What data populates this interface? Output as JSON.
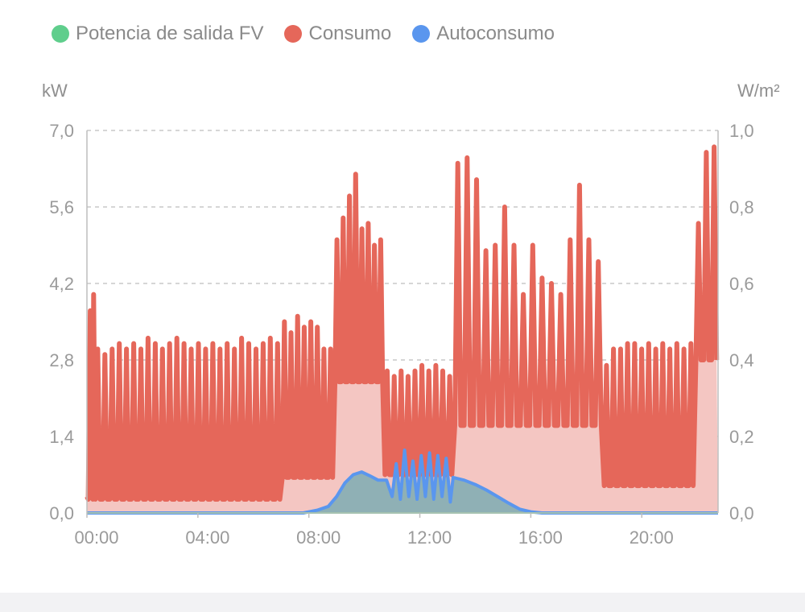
{
  "legend": {
    "pv": "Potencia de salida FV",
    "consumption": "Consumo",
    "self_consumption": "Autoconsumo"
  },
  "colors": {
    "pv": "#5fce8c",
    "consumption": "#e5675a",
    "consumption_fill": "#f4c6c2",
    "self_consumption": "#5a96ee",
    "self_consumption_fill": "#8fb0b5",
    "grid": "#c8c8c8",
    "axis": "#bdbdbd"
  },
  "chart_data": {
    "type": "line",
    "x_unit": "hours",
    "y_left_unit": "kW",
    "y_right_unit": "W/m²",
    "y_left_ticks": [
      "0,0",
      "1,4",
      "2,8",
      "4,2",
      "5,6",
      "7,0"
    ],
    "y_right_ticks": [
      "0,0",
      "0,2",
      "0,4",
      "0,6",
      "0,8",
      "1,0"
    ],
    "x_ticks": [
      "00:00",
      "04:00",
      "08:00",
      "12:00",
      "16:00",
      "20:00"
    ],
    "ylim_left": [
      0,
      7.0
    ],
    "ylim_right": [
      0,
      1.0
    ],
    "xlim": [
      0,
      22.75
    ],
    "grid": "horizontal dashed",
    "series": [
      {
        "name": "Consumo",
        "key": "consumption",
        "segments": [
          {
            "start": 0.0,
            "end": 7.0,
            "low": 0.25,
            "high": [
              3.0,
              3.0,
              2.9,
              3.0,
              3.1,
              3.0,
              3.1,
              3.0,
              3.2,
              3.1,
              3.0,
              3.1,
              3.2,
              3.1,
              3.0,
              3.1,
              3.0,
              3.1,
              3.0,
              3.1,
              3.0,
              3.2,
              3.1,
              3.0,
              3.1,
              3.2,
              3.1
            ]
          },
          {
            "start": 7.0,
            "end": 8.9,
            "low": 0.65,
            "high": [
              3.5,
              3.3,
              3.6,
              3.4,
              3.5,
              3.4,
              3.0,
              3.0
            ]
          },
          {
            "start": 8.9,
            "end": 10.7,
            "low": 2.4,
            "high": [
              5.0,
              5.4,
              5.8,
              6.2,
              5.2,
              5.3,
              4.9,
              5.0
            ]
          },
          {
            "start": 10.7,
            "end": 13.2,
            "low": 0.7,
            "high": [
              2.6,
              2.5,
              2.6,
              2.5,
              2.6,
              2.7,
              2.6,
              2.7,
              2.6,
              2.5
            ]
          },
          {
            "start": 13.2,
            "end": 18.6,
            "low": 1.6,
            "high": [
              6.4,
              6.5,
              6.1,
              4.8,
              4.9,
              5.6,
              4.9,
              4.0,
              4.9,
              4.3,
              4.2,
              4.0,
              5.0,
              6.0,
              5.0,
              4.6
            ]
          },
          {
            "start": 18.6,
            "end": 21.9,
            "low": 0.5,
            "high": [
              2.7,
              3.0,
              3.0,
              3.1,
              3.1,
              3.0,
              3.1,
              3.0,
              3.1,
              3.0,
              3.1,
              3.0,
              3.1
            ]
          },
          {
            "start": 21.9,
            "end": 22.75,
            "low": 2.8,
            "high": [
              5.3,
              6.6,
              6.7
            ]
          }
        ],
        "start_values": [
          0.3,
          3.7,
          4.0
        ]
      },
      {
        "name": "Autoconsumo",
        "key": "self_consumption",
        "points": [
          [
            0,
            0
          ],
          [
            7.8,
            0
          ],
          [
            8.3,
            0.05
          ],
          [
            8.7,
            0.12
          ],
          [
            9.0,
            0.3
          ],
          [
            9.3,
            0.55
          ],
          [
            9.6,
            0.7
          ],
          [
            9.9,
            0.75
          ],
          [
            10.2,
            0.68
          ],
          [
            10.5,
            0.6
          ],
          [
            10.8,
            0.6
          ],
          [
            11.0,
            0.3
          ],
          [
            11.15,
            0.9
          ],
          [
            11.3,
            0.25
          ],
          [
            11.45,
            1.15
          ],
          [
            11.6,
            0.3
          ],
          [
            11.75,
            0.95
          ],
          [
            11.9,
            0.25
          ],
          [
            12.05,
            1.05
          ],
          [
            12.2,
            0.3
          ],
          [
            12.35,
            1.1
          ],
          [
            12.5,
            0.25
          ],
          [
            12.65,
            1.05
          ],
          [
            12.8,
            0.3
          ],
          [
            12.95,
            1.0
          ],
          [
            13.1,
            0.2
          ],
          [
            13.2,
            0.65
          ],
          [
            13.6,
            0.6
          ],
          [
            14.0,
            0.52
          ],
          [
            14.4,
            0.42
          ],
          [
            14.8,
            0.3
          ],
          [
            15.2,
            0.18
          ],
          [
            15.6,
            0.07
          ],
          [
            16.0,
            0.02
          ],
          [
            16.4,
            0
          ],
          [
            22.75,
            0
          ]
        ]
      },
      {
        "name": "Potencia de salida FV",
        "key": "pv",
        "points": [
          [
            0,
            0
          ],
          [
            22.75,
            0
          ]
        ]
      }
    ]
  }
}
